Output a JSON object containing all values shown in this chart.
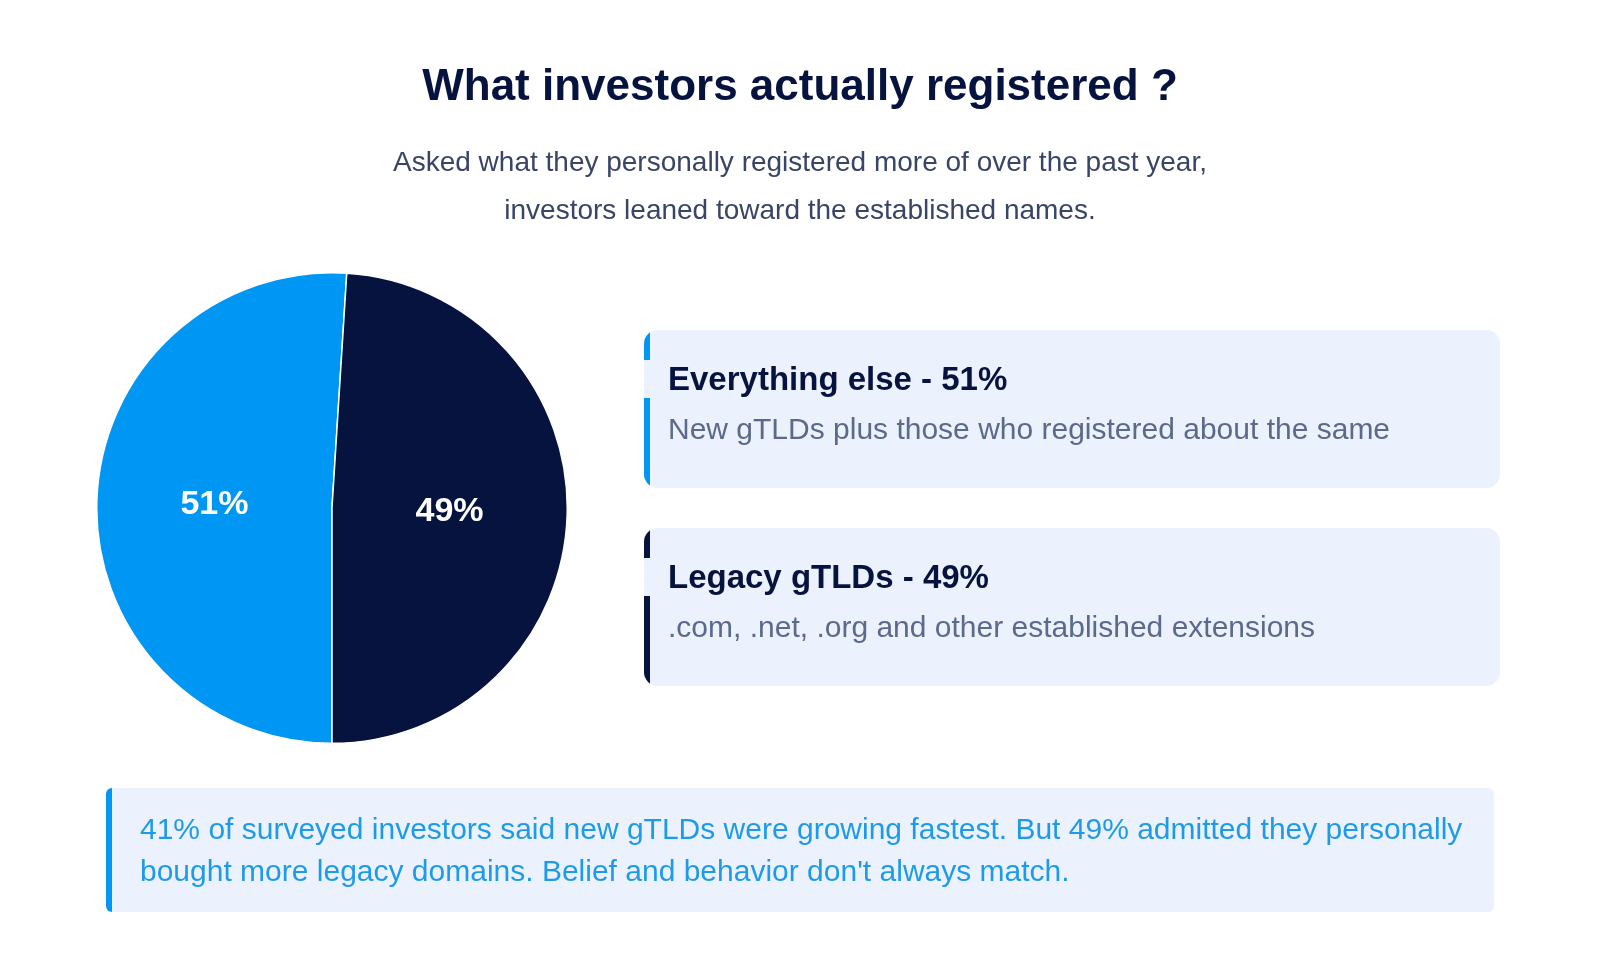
{
  "chart_data": {
    "type": "pie",
    "title": "What investors actually registered ?",
    "subtitle": "Asked what they personally registered more of over the past year,\ninvestors leaned toward the established names.",
    "categories": [
      "Everything else",
      "Legacy gTLDs"
    ],
    "values": [
      51,
      49
    ],
    "colors": [
      "#0096f4",
      "#06133f"
    ],
    "value_labels": [
      "51%",
      "49%"
    ],
    "legend": "right",
    "annotations": [
      "New gTLDs plus those who registered about the same",
      ".com, .net, .org and other established extensions",
      "41% of surveyed investors said new gTLDs were growing fastest. But 49% admitted they personally bought more legacy domains. Belief and behavior don't always match."
    ]
  }
}
